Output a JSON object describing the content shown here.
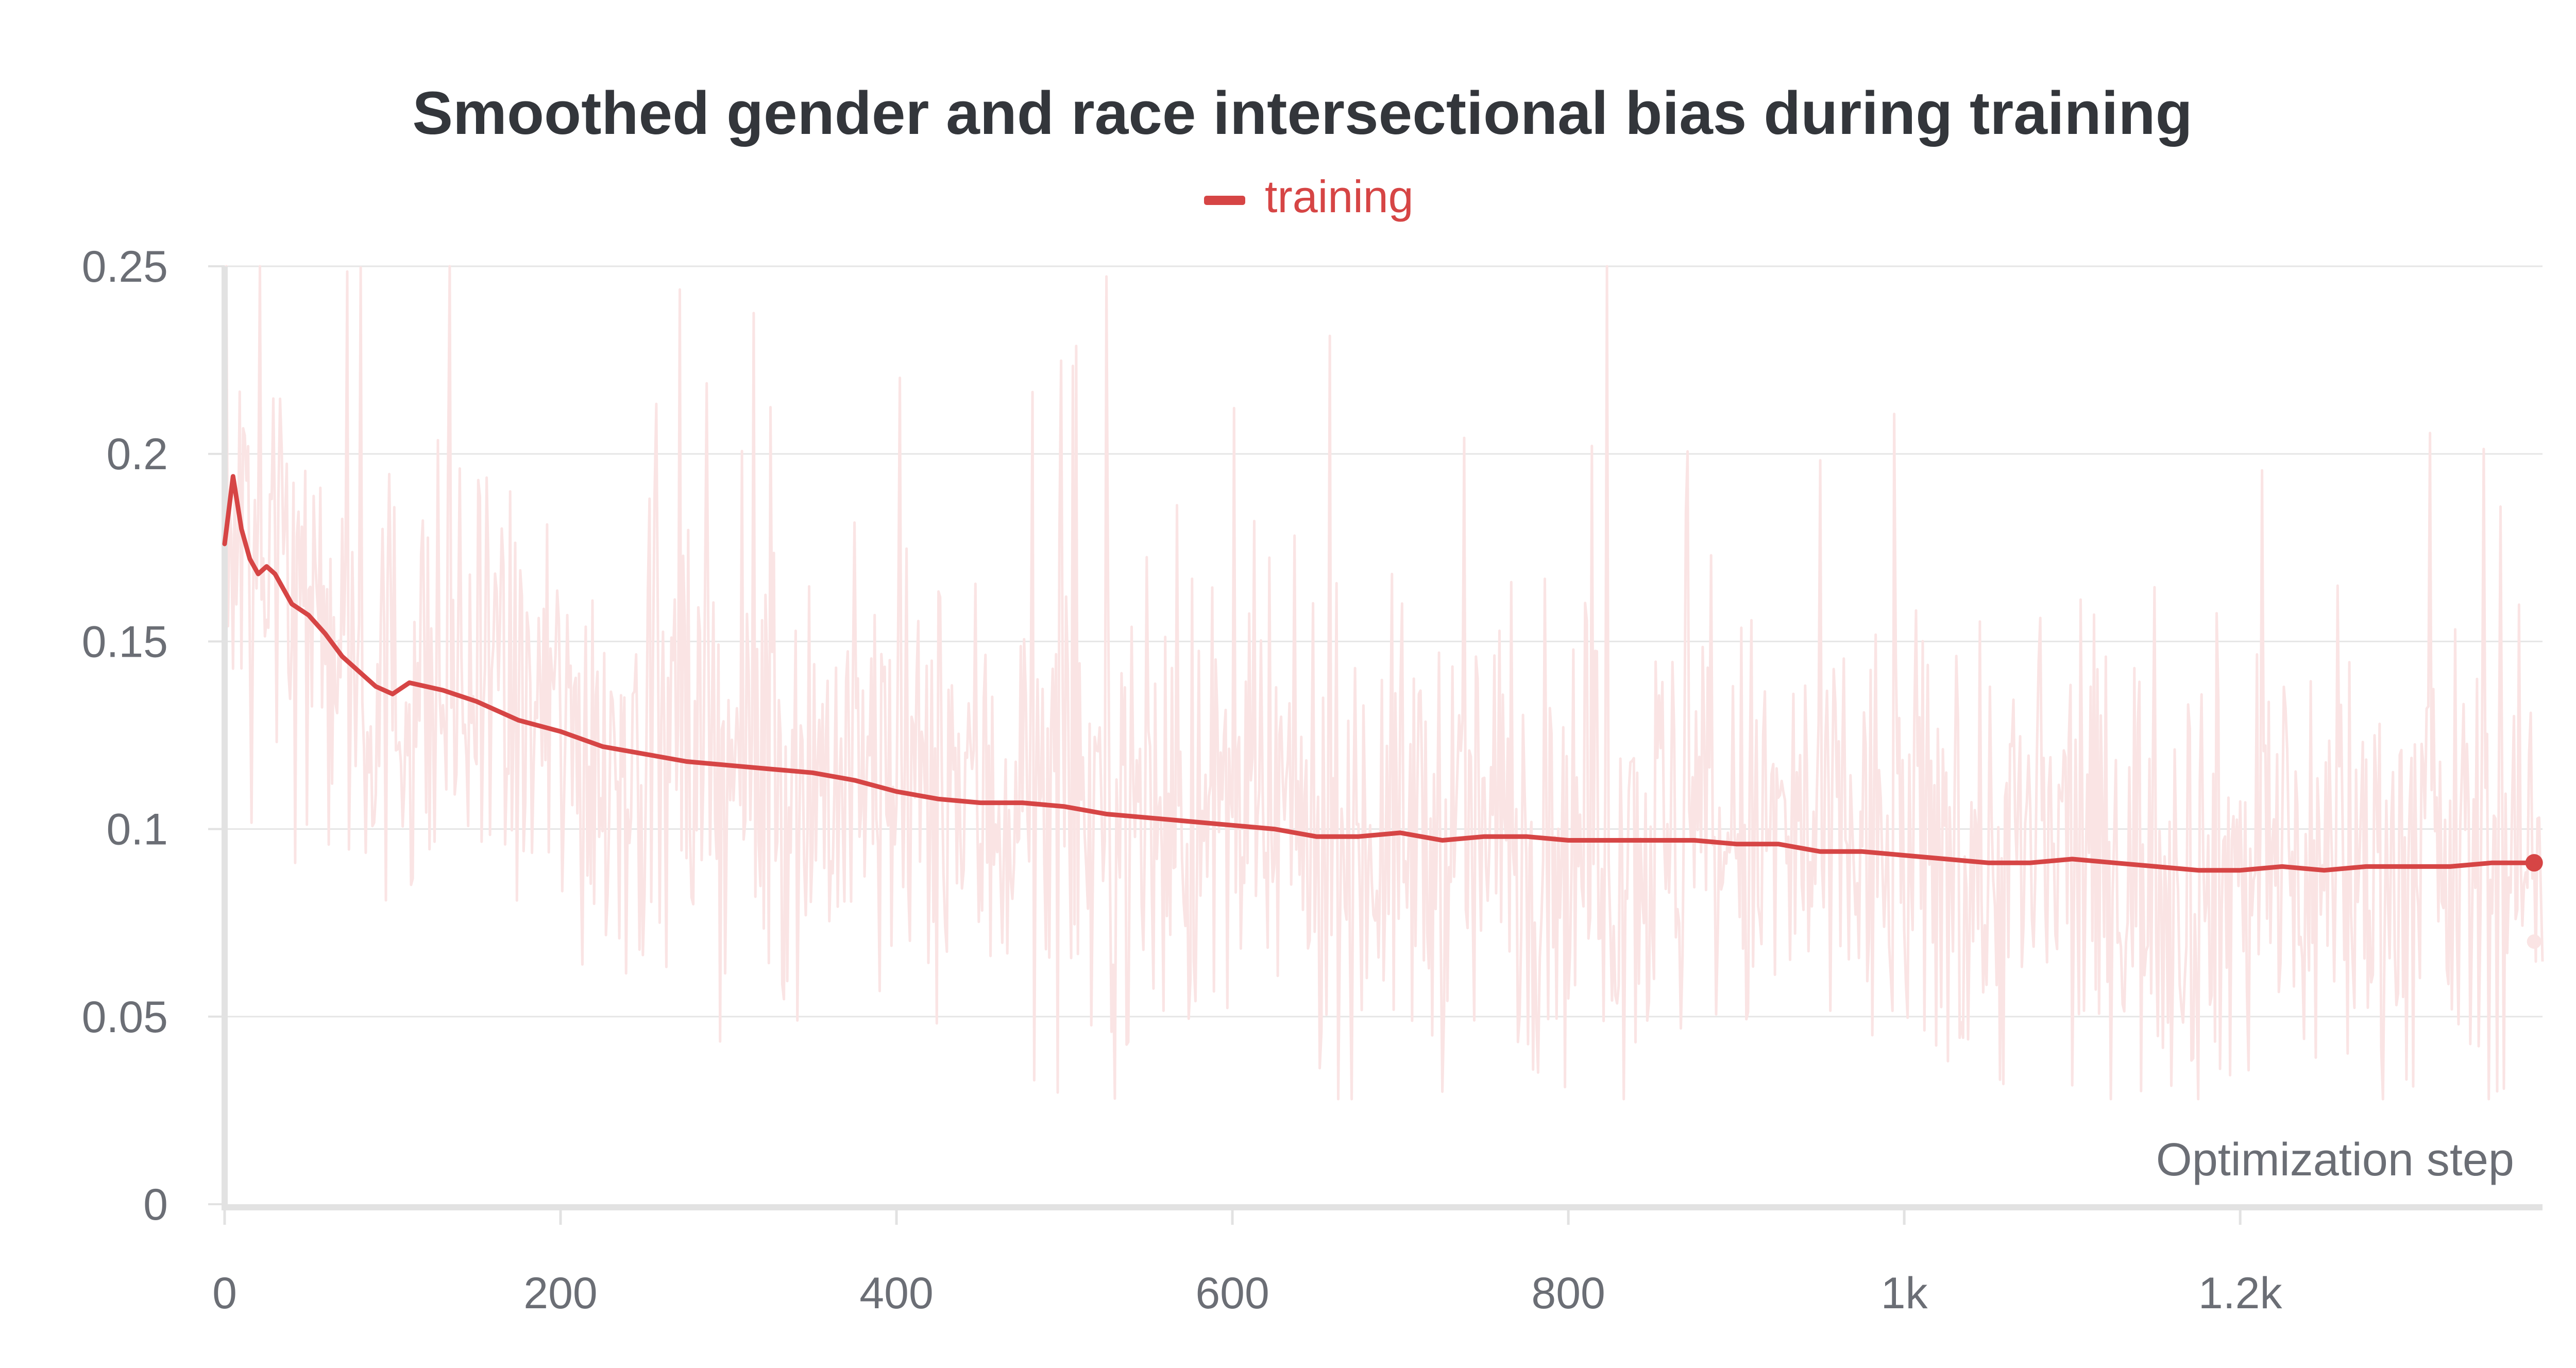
{
  "chart_data": {
    "type": "line",
    "title": "Smoothed gender and race intersectional bias during training",
    "xlabel": "Optimization step",
    "ylabel": "",
    "xlim": [
      0,
      1380
    ],
    "ylim": [
      0,
      0.25
    ],
    "x_ticks": [
      0,
      200,
      400,
      600,
      800,
      1000,
      1200
    ],
    "x_tick_labels": [
      "0",
      "200",
      "400",
      "600",
      "800",
      "1k",
      "1.2k"
    ],
    "y_ticks": [
      0,
      0.05,
      0.1,
      0.15,
      0.2,
      0.25
    ],
    "y_tick_labels": [
      "0",
      "0.05",
      "0.1",
      "0.15",
      "0.2",
      "0.25"
    ],
    "grid": true,
    "legend_position": "top-center",
    "colors": {
      "series": "#d64545",
      "raw": "#fae4e4",
      "grid": "#e6e6e6",
      "axis": "#e2e2e2"
    },
    "series": [
      {
        "name": "training",
        "smoothed": {
          "x": [
            0,
            5,
            10,
            15,
            20,
            25,
            30,
            40,
            50,
            60,
            70,
            80,
            90,
            100,
            110,
            120,
            130,
            150,
            175,
            200,
            225,
            250,
            275,
            300,
            325,
            350,
            375,
            400,
            425,
            450,
            475,
            500,
            525,
            550,
            575,
            600,
            625,
            650,
            675,
            700,
            725,
            750,
            775,
            800,
            825,
            850,
            875,
            900,
            925,
            950,
            975,
            1000,
            1025,
            1050,
            1075,
            1100,
            1125,
            1150,
            1175,
            1200,
            1225,
            1250,
            1275,
            1300,
            1325,
            1350,
            1375
          ],
          "y": [
            0.176,
            0.194,
            0.18,
            0.172,
            0.168,
            0.17,
            0.168,
            0.16,
            0.157,
            0.152,
            0.146,
            0.142,
            0.138,
            0.136,
            0.139,
            0.138,
            0.137,
            0.134,
            0.129,
            0.126,
            0.122,
            0.12,
            0.118,
            0.117,
            0.116,
            0.115,
            0.113,
            0.11,
            0.108,
            0.107,
            0.107,
            0.106,
            0.104,
            0.103,
            0.102,
            0.101,
            0.1,
            0.098,
            0.098,
            0.099,
            0.097,
            0.098,
            0.098,
            0.097,
            0.097,
            0.097,
            0.097,
            0.096,
            0.096,
            0.094,
            0.094,
            0.093,
            0.092,
            0.091,
            0.091,
            0.092,
            0.091,
            0.09,
            0.089,
            0.089,
            0.09,
            0.089,
            0.09,
            0.09,
            0.09,
            0.091,
            0.091
          ]
        },
        "raw_last_value": 0.07
      }
    ]
  }
}
